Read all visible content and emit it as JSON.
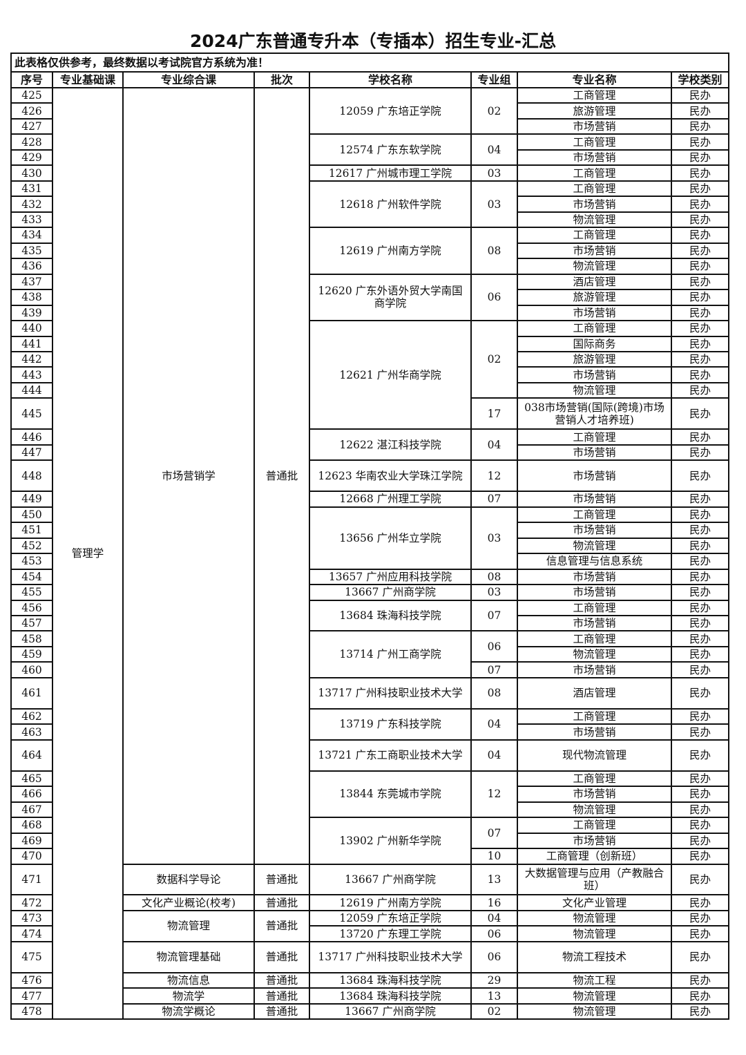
{
  "title": "2024广东普通专升本（专插本）招生专业-汇总",
  "note": "此表格仅供参考，最终数据以考试院官方系统为准！",
  "headers": [
    "序号",
    "专业基础课",
    "专业综合课",
    "批次",
    "学校名称",
    "专业组",
    "专业名称",
    "学校类别"
  ],
  "basic_course": "管理学",
  "sections": [
    {
      "course": "市场营销学",
      "batch": "普通批",
      "schools": [
        {
          "name": "12059  广东培正学院",
          "groups": [
            {
              "code": "02",
              "majors": [
                {
                  "no": "425",
                  "name": "工商管理",
                  "type": "民办"
                },
                {
                  "no": "426",
                  "name": "旅游管理",
                  "type": "民办"
                },
                {
                  "no": "427",
                  "name": "市场营销",
                  "type": "民办"
                }
              ]
            }
          ]
        },
        {
          "name": "12574  广东东软学院",
          "groups": [
            {
              "code": "04",
              "majors": [
                {
                  "no": "428",
                  "name": "工商管理",
                  "type": "民办"
                },
                {
                  "no": "429",
                  "name": "市场营销",
                  "type": "民办"
                }
              ]
            }
          ]
        },
        {
          "name": "12617  广州城市理工学院",
          "groups": [
            {
              "code": "03",
              "majors": [
                {
                  "no": "430",
                  "name": "工商管理",
                  "type": "民办"
                }
              ]
            }
          ]
        },
        {
          "name": "12618  广州软件学院",
          "groups": [
            {
              "code": "03",
              "majors": [
                {
                  "no": "431",
                  "name": "工商管理",
                  "type": "民办"
                },
                {
                  "no": "432",
                  "name": "市场营销",
                  "type": "民办"
                },
                {
                  "no": "433",
                  "name": "物流管理",
                  "type": "民办"
                }
              ]
            }
          ]
        },
        {
          "name": "12619  广州南方学院",
          "groups": [
            {
              "code": "08",
              "majors": [
                {
                  "no": "434",
                  "name": "工商管理",
                  "type": "民办"
                },
                {
                  "no": "435",
                  "name": "市场营销",
                  "type": "民办"
                },
                {
                  "no": "436",
                  "name": "物流管理",
                  "type": "民办"
                }
              ]
            }
          ]
        },
        {
          "name": "12620  广东外语外贸大学南国商学院",
          "groups": [
            {
              "code": "06",
              "majors": [
                {
                  "no": "437",
                  "name": "酒店管理",
                  "type": "民办"
                },
                {
                  "no": "438",
                  "name": "旅游管理",
                  "type": "民办"
                },
                {
                  "no": "439",
                  "name": "市场营销",
                  "type": "民办"
                }
              ]
            }
          ]
        },
        {
          "name": "12621  广州华商学院",
          "groups": [
            {
              "code": "02",
              "majors": [
                {
                  "no": "440",
                  "name": "工商管理",
                  "type": "民办"
                },
                {
                  "no": "441",
                  "name": "国际商务",
                  "type": "民办"
                },
                {
                  "no": "442",
                  "name": "旅游管理",
                  "type": "民办"
                },
                {
                  "no": "443",
                  "name": "市场营销",
                  "type": "民办"
                },
                {
                  "no": "444",
                  "name": "物流管理",
                  "type": "民办"
                }
              ]
            },
            {
              "code": "17",
              "majors": [
                {
                  "no": "445",
                  "name": "038市场营销(国际(跨境)市场营销人才培养班)",
                  "type": "民办"
                }
              ]
            }
          ]
        },
        {
          "name": "12622  湛江科技学院",
          "groups": [
            {
              "code": "04",
              "majors": [
                {
                  "no": "446",
                  "name": "工商管理",
                  "type": "民办"
                },
                {
                  "no": "447",
                  "name": "市场营销",
                  "type": "民办"
                }
              ]
            }
          ]
        },
        {
          "name": "12623  华南农业大学珠江学院",
          "groups": [
            {
              "code": "12",
              "majors": [
                {
                  "no": "448",
                  "name": "市场营销",
                  "type": "民办"
                }
              ]
            }
          ]
        },
        {
          "name": "12668  广州理工学院",
          "groups": [
            {
              "code": "07",
              "majors": [
                {
                  "no": "449",
                  "name": "市场营销",
                  "type": "民办"
                }
              ]
            }
          ]
        },
        {
          "name": "13656  广州华立学院",
          "groups": [
            {
              "code": "03",
              "majors": [
                {
                  "no": "450",
                  "name": "工商管理",
                  "type": "民办"
                },
                {
                  "no": "451",
                  "name": "市场营销",
                  "type": "民办"
                },
                {
                  "no": "452",
                  "name": "物流管理",
                  "type": "民办"
                },
                {
                  "no": "453",
                  "name": "信息管理与信息系统",
                  "type": "民办"
                }
              ]
            }
          ]
        },
        {
          "name": "13657  广州应用科技学院",
          "groups": [
            {
              "code": "08",
              "majors": [
                {
                  "no": "454",
                  "name": "市场营销",
                  "type": "民办"
                }
              ]
            }
          ]
        },
        {
          "name": "13667  广州商学院",
          "groups": [
            {
              "code": "03",
              "majors": [
                {
                  "no": "455",
                  "name": "市场营销",
                  "type": "民办"
                }
              ]
            }
          ]
        },
        {
          "name": "13684  珠海科技学院",
          "groups": [
            {
              "code": "07",
              "majors": [
                {
                  "no": "456",
                  "name": "工商管理",
                  "type": "民办"
                },
                {
                  "no": "457",
                  "name": "市场营销",
                  "type": "民办"
                }
              ]
            }
          ]
        },
        {
          "name": "13714  广州工商学院",
          "groups": [
            {
              "code": "06",
              "majors": [
                {
                  "no": "458",
                  "name": "工商管理",
                  "type": "民办"
                },
                {
                  "no": "459",
                  "name": "物流管理",
                  "type": "民办"
                }
              ]
            },
            {
              "code": "07",
              "majors": [
                {
                  "no": "460",
                  "name": "市场营销",
                  "type": "民办"
                }
              ]
            }
          ]
        },
        {
          "name": "13717  广州科技职业技术大学",
          "groups": [
            {
              "code": "08",
              "majors": [
                {
                  "no": "461",
                  "name": "酒店管理",
                  "type": "民办"
                }
              ]
            }
          ]
        },
        {
          "name": "13719  广东科技学院",
          "groups": [
            {
              "code": "04",
              "majors": [
                {
                  "no": "462",
                  "name": "工商管理",
                  "type": "民办"
                },
                {
                  "no": "463",
                  "name": "市场营销",
                  "type": "民办"
                }
              ]
            }
          ]
        },
        {
          "name": "13721  广东工商职业技术大学",
          "groups": [
            {
              "code": "04",
              "majors": [
                {
                  "no": "464",
                  "name": "现代物流管理",
                  "type": "民办"
                }
              ]
            }
          ]
        },
        {
          "name": "13844  东莞城市学院",
          "groups": [
            {
              "code": "12",
              "majors": [
                {
                  "no": "465",
                  "name": "工商管理",
                  "type": "民办"
                },
                {
                  "no": "466",
                  "name": "市场营销",
                  "type": "民办"
                },
                {
                  "no": "467",
                  "name": "物流管理",
                  "type": "民办"
                }
              ]
            }
          ]
        },
        {
          "name": "13902  广州新华学院",
          "groups": [
            {
              "code": "07",
              "majors": [
                {
                  "no": "468",
                  "name": "工商管理",
                  "type": "民办"
                },
                {
                  "no": "469",
                  "name": "市场营销",
                  "type": "民办"
                }
              ]
            },
            {
              "code": "10",
              "majors": [
                {
                  "no": "470",
                  "name": "工商管理（创新班）",
                  "type": "民办"
                }
              ]
            }
          ]
        }
      ]
    },
    {
      "course": "数据科学导论",
      "batch": "普通批",
      "schools": [
        {
          "name": "13667  广州商学院",
          "groups": [
            {
              "code": "13",
              "majors": [
                {
                  "no": "471",
                  "name": "大数据管理与应用（产教融合班）",
                  "type": "民办"
                }
              ]
            }
          ]
        }
      ]
    },
    {
      "course": "文化产业概论(校考)",
      "batch": "普通批",
      "schools": [
        {
          "name": "12619  广州南方学院",
          "groups": [
            {
              "code": "16",
              "majors": [
                {
                  "no": "472",
                  "name": "文化产业管理",
                  "type": "民办"
                }
              ]
            }
          ]
        }
      ]
    },
    {
      "course": "物流管理",
      "batch": "普通批",
      "schools": [
        {
          "name": "12059  广东培正学院",
          "groups": [
            {
              "code": "04",
              "majors": [
                {
                  "no": "473",
                  "name": "物流管理",
                  "type": "民办"
                }
              ]
            }
          ]
        },
        {
          "name": "13720  广东理工学院",
          "groups": [
            {
              "code": "06",
              "majors": [
                {
                  "no": "474",
                  "name": "物流管理",
                  "type": "民办"
                }
              ]
            }
          ]
        }
      ]
    },
    {
      "course": "物流管理基础",
      "batch": "普通批",
      "schools": [
        {
          "name": "13717  广州科技职业技术大学",
          "groups": [
            {
              "code": "06",
              "majors": [
                {
                  "no": "475",
                  "name": "物流工程技术",
                  "type": "民办"
                }
              ]
            }
          ]
        }
      ]
    },
    {
      "course": "物流信息",
      "batch": "普通批",
      "schools": [
        {
          "name": "13684  珠海科技学院",
          "groups": [
            {
              "code": "29",
              "majors": [
                {
                  "no": "476",
                  "name": "物流工程",
                  "type": "民办"
                }
              ]
            }
          ]
        }
      ]
    },
    {
      "course": "物流学",
      "batch": "普通批",
      "schools": [
        {
          "name": "13684  珠海科技学院",
          "groups": [
            {
              "code": "13",
              "majors": [
                {
                  "no": "477",
                  "name": "物流管理",
                  "type": "民办"
                }
              ]
            }
          ]
        }
      ]
    },
    {
      "course": "物流学概论",
      "batch": "普通批",
      "schools": [
        {
          "name": "13667  广州商学院",
          "groups": [
            {
              "code": "02",
              "majors": [
                {
                  "no": "478",
                  "name": "物流管理",
                  "type": "民办"
                }
              ]
            }
          ]
        }
      ]
    }
  ]
}
